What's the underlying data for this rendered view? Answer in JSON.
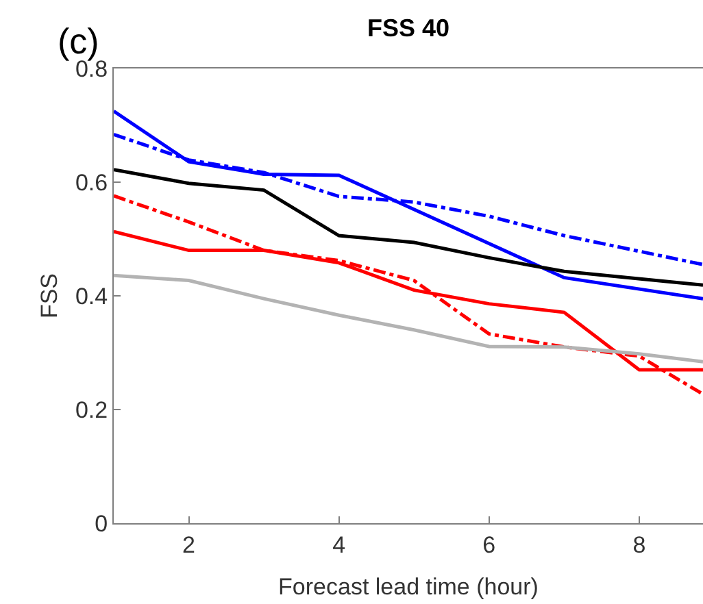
{
  "chart_data": {
    "type": "line",
    "title": "FSS 40",
    "xlabel": "Forecast lead time (hour)",
    "ylabel": "FSS",
    "annotations": [
      "(c)"
    ],
    "xlim": [
      1,
      8.85
    ],
    "xticks": [
      2,
      4,
      6,
      8
    ],
    "ylim": [
      0,
      0.8
    ],
    "yticks": [
      0,
      0.2,
      0.4,
      0.6,
      0.8
    ],
    "series": [
      {
        "color": "#0000ff",
        "line_style": "solid",
        "x": [
          1,
          2,
          3,
          4,
          7,
          8.85
        ],
        "values": [
          0.725,
          0.636,
          0.614,
          0.612,
          0.432,
          0.395
        ]
      },
      {
        "color": "#0000ff",
        "line_style": "dashdot",
        "x": [
          1,
          2,
          3,
          4,
          5,
          6,
          7,
          8.85
        ],
        "values": [
          0.684,
          0.639,
          0.617,
          0.575,
          0.565,
          0.54,
          0.506,
          0.455
        ]
      },
      {
        "color": "#000000",
        "line_style": "solid",
        "x": [
          1,
          2,
          3,
          4,
          5,
          6,
          7,
          8.85
        ],
        "values": [
          0.622,
          0.598,
          0.586,
          0.506,
          0.494,
          0.467,
          0.443,
          0.419
        ]
      },
      {
        "color": "#ff0000",
        "line_style": "solid",
        "x": [
          1,
          2,
          3,
          4,
          5,
          6,
          7,
          8,
          8.85
        ],
        "values": [
          0.513,
          0.48,
          0.48,
          0.458,
          0.41,
          0.386,
          0.371,
          0.27,
          0.27
        ]
      },
      {
        "color": "#ff0000",
        "line_style": "dashdot",
        "x": [
          1,
          2,
          3,
          4,
          5,
          6,
          7,
          8,
          8.85
        ],
        "values": [
          0.576,
          0.53,
          0.48,
          0.462,
          0.427,
          0.333,
          0.31,
          0.294,
          0.227
        ]
      },
      {
        "color": "#b3b3b3",
        "line_style": "solid",
        "x": [
          1,
          2,
          3,
          4,
          5,
          6,
          7,
          8,
          8.85
        ],
        "values": [
          0.436,
          0.427,
          0.395,
          0.366,
          0.34,
          0.311,
          0.31,
          0.298,
          0.284
        ]
      }
    ]
  }
}
